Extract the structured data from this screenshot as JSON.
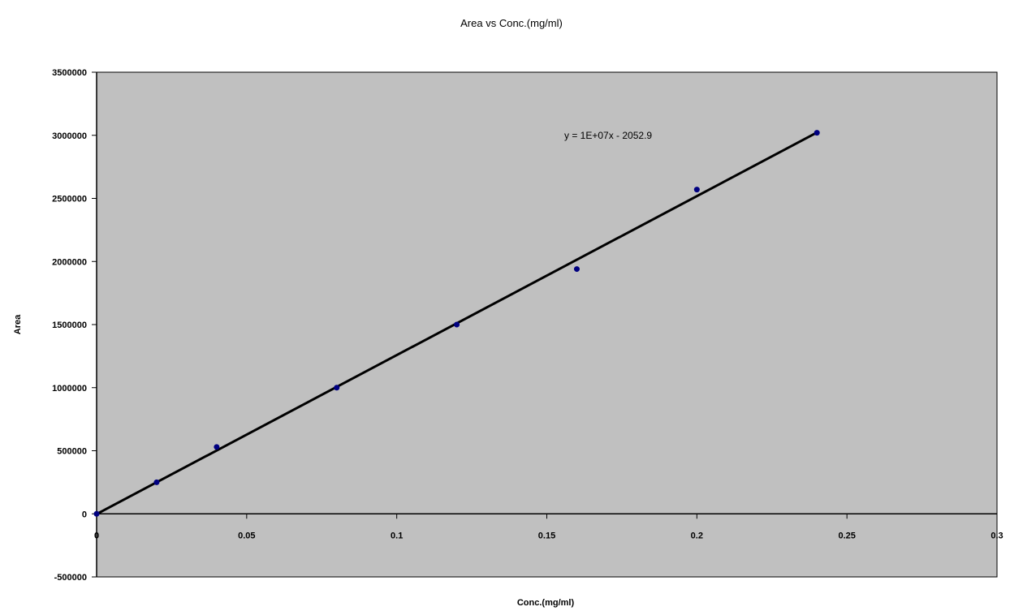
{
  "chart_data": {
    "type": "scatter",
    "title": "Area vs Conc.(mg/ml)",
    "xlabel": "Conc.(mg/ml)",
    "ylabel": "Area",
    "xlim": [
      0,
      0.3
    ],
    "ylim": [
      -500000,
      3500000
    ],
    "x_ticks": [
      "0",
      "0.05",
      "0.1",
      "0.15",
      "0.2",
      "0.25",
      "0.3"
    ],
    "y_ticks": [
      "3500000",
      "3000000",
      "2500000",
      "2000000",
      "1500000",
      "1000000",
      "500000",
      "0",
      "-500000"
    ],
    "x_tick_values": [
      0,
      0.05,
      0.1,
      0.15,
      0.2,
      0.25,
      0.3
    ],
    "y_tick_values": [
      3500000,
      3000000,
      2500000,
      2000000,
      1500000,
      1000000,
      500000,
      0,
      -500000
    ],
    "grid": false,
    "plot_background": "#c0c0c0",
    "marker_color": "#000080",
    "trendline_color": "#000000",
    "points": [
      {
        "x": 0,
        "y": 0
      },
      {
        "x": 0.02,
        "y": 250000
      },
      {
        "x": 0.04,
        "y": 530000
      },
      {
        "x": 0.08,
        "y": 1000000
      },
      {
        "x": 0.12,
        "y": 1500000
      },
      {
        "x": 0.16,
        "y": 1940000
      },
      {
        "x": 0.2,
        "y": 2570000
      },
      {
        "x": 0.24,
        "y": 3020000
      }
    ],
    "trendline": {
      "equation": "y = 1E+07x - 2052.9",
      "slope": 12600000,
      "intercept": -2052.9,
      "x_range": [
        0,
        0.24
      ]
    }
  }
}
